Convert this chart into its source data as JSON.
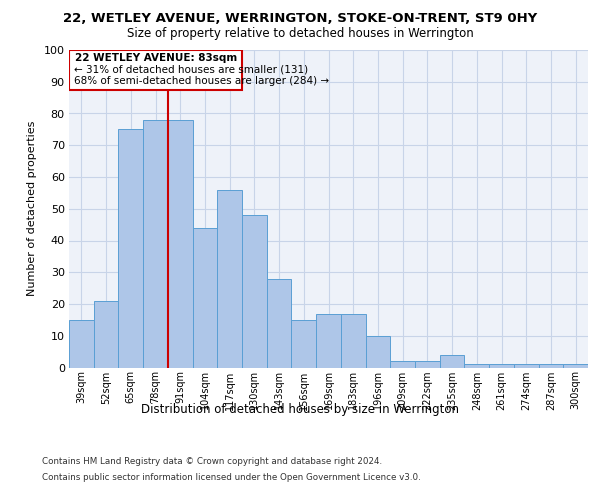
{
  "title_line1": "22, WETLEY AVENUE, WERRINGTON, STOKE-ON-TRENT, ST9 0HY",
  "title_line2": "Size of property relative to detached houses in Werrington",
  "xlabel": "Distribution of detached houses by size in Werrington",
  "ylabel": "Number of detached properties",
  "categories": [
    "39sqm",
    "52sqm",
    "65sqm",
    "78sqm",
    "91sqm",
    "104sqm",
    "117sqm",
    "130sqm",
    "143sqm",
    "156sqm",
    "169sqm",
    "183sqm",
    "196sqm",
    "209sqm",
    "222sqm",
    "235sqm",
    "248sqm",
    "261sqm",
    "274sqm",
    "287sqm",
    "300sqm"
  ],
  "values": [
    15,
    21,
    75,
    78,
    78,
    44,
    56,
    48,
    28,
    15,
    17,
    17,
    10,
    2,
    2,
    4,
    1,
    1,
    1,
    1,
    1
  ],
  "bar_color": "#aec6e8",
  "bar_edge_color": "#5a9fd4",
  "grid_color": "#c8d4e8",
  "annotation_box_color": "#cc0000",
  "vline_color": "#cc0000",
  "annotation_text_line1": "22 WETLEY AVENUE: 83sqm",
  "annotation_text_line2": "← 31% of detached houses are smaller (131)",
  "annotation_text_line3": "68% of semi-detached houses are larger (284) →",
  "footnote1": "Contains HM Land Registry data © Crown copyright and database right 2024.",
  "footnote2": "Contains public sector information licensed under the Open Government Licence v3.0.",
  "ylim": [
    0,
    100
  ],
  "yticks": [
    0,
    10,
    20,
    30,
    40,
    50,
    60,
    70,
    80,
    90,
    100
  ],
  "bg_color": "#eef2f9"
}
